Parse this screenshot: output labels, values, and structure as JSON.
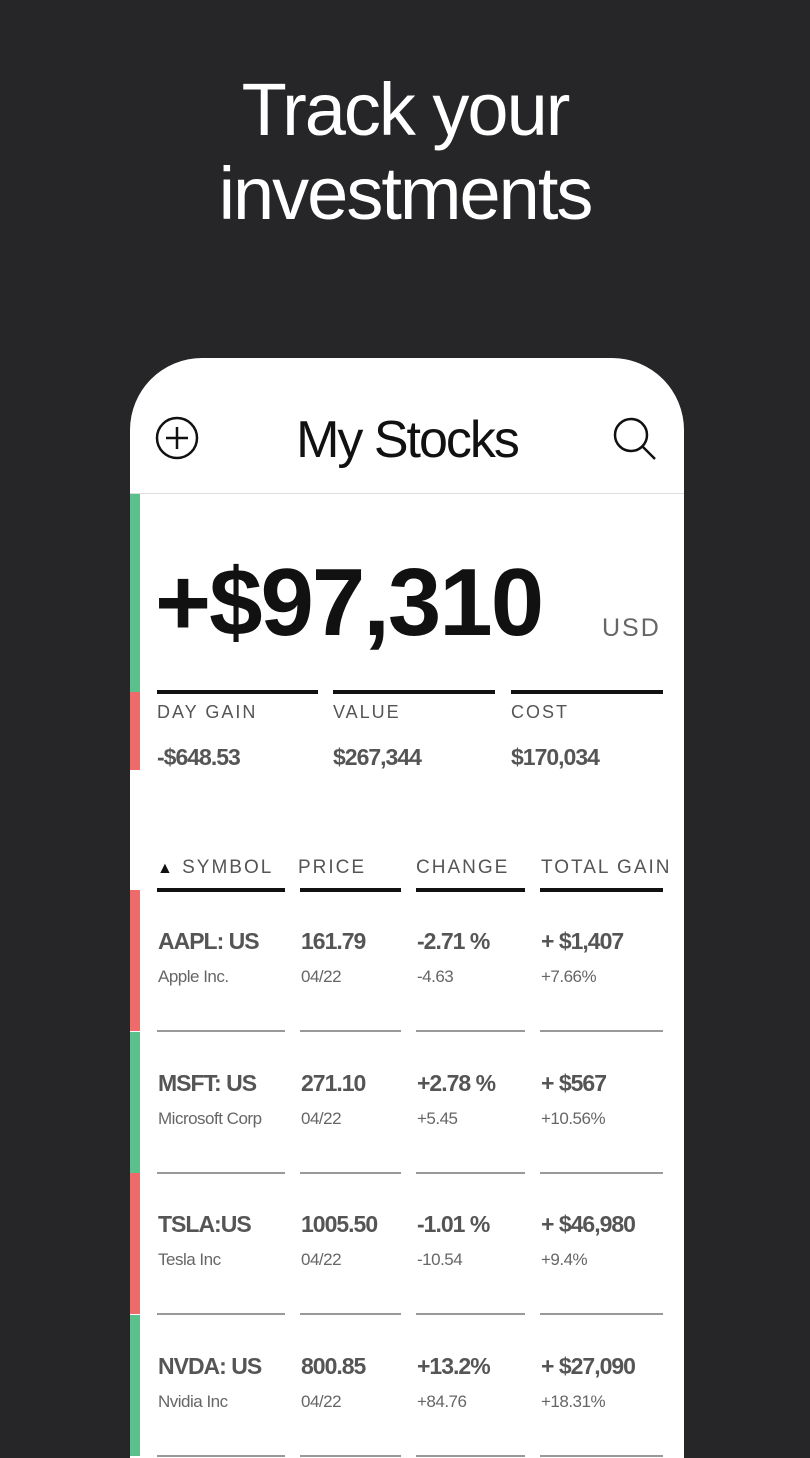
{
  "hero": {
    "line1": "Track your",
    "line2": "investments"
  },
  "header": {
    "title": "My Stocks",
    "add_icon": "plus-circle-icon",
    "search_icon": "search-icon"
  },
  "summary": {
    "total_gain": "+$97,310",
    "currency": "USD",
    "stats": [
      {
        "label": "DAY GAIN",
        "value": "-$648.53"
      },
      {
        "label": "VALUE",
        "value": "$267,344"
      },
      {
        "label": "COST",
        "value": "$170,034"
      }
    ]
  },
  "table": {
    "sort_indicator": "▲",
    "columns": [
      "SYMBOL",
      "PRICE",
      "CHANGE",
      "TOTAL GAIN"
    ],
    "rows": [
      {
        "symbol": "AAPL: US",
        "name": "Apple Inc.",
        "price": "161.79",
        "date": "04/22",
        "change_pct": "-2.71 %",
        "change": "-4.63",
        "total_gain": "+ $1,407",
        "total_gain_pct": "+7.66%",
        "trend": "down"
      },
      {
        "symbol": "MSFT: US",
        "name": "Microsoft Corp",
        "price": "271.10",
        "date": "04/22",
        "change_pct": "+2.78 %",
        "change": "+5.45",
        "total_gain": "+ $567",
        "total_gain_pct": "+10.56%",
        "trend": "up"
      },
      {
        "symbol": "TSLA:US",
        "name": "Tesla Inc",
        "price": "1005.50",
        "date": "04/22",
        "change_pct": "-1.01 %",
        "change": "-10.54",
        "total_gain": "+ $46,980",
        "total_gain_pct": "+9.4%",
        "trend": "down"
      },
      {
        "symbol": "NVDA: US",
        "name": "Nvidia Inc",
        "price": "800.85",
        "date": "04/22",
        "change_pct": "+13.2%",
        "change": "+84.76",
        "total_gain": "+ $27,090",
        "total_gain_pct": "+18.31%",
        "trend": "up"
      }
    ]
  },
  "colors": {
    "up": "#5cc08c",
    "down": "#ee6b6b",
    "background": "#262628"
  }
}
